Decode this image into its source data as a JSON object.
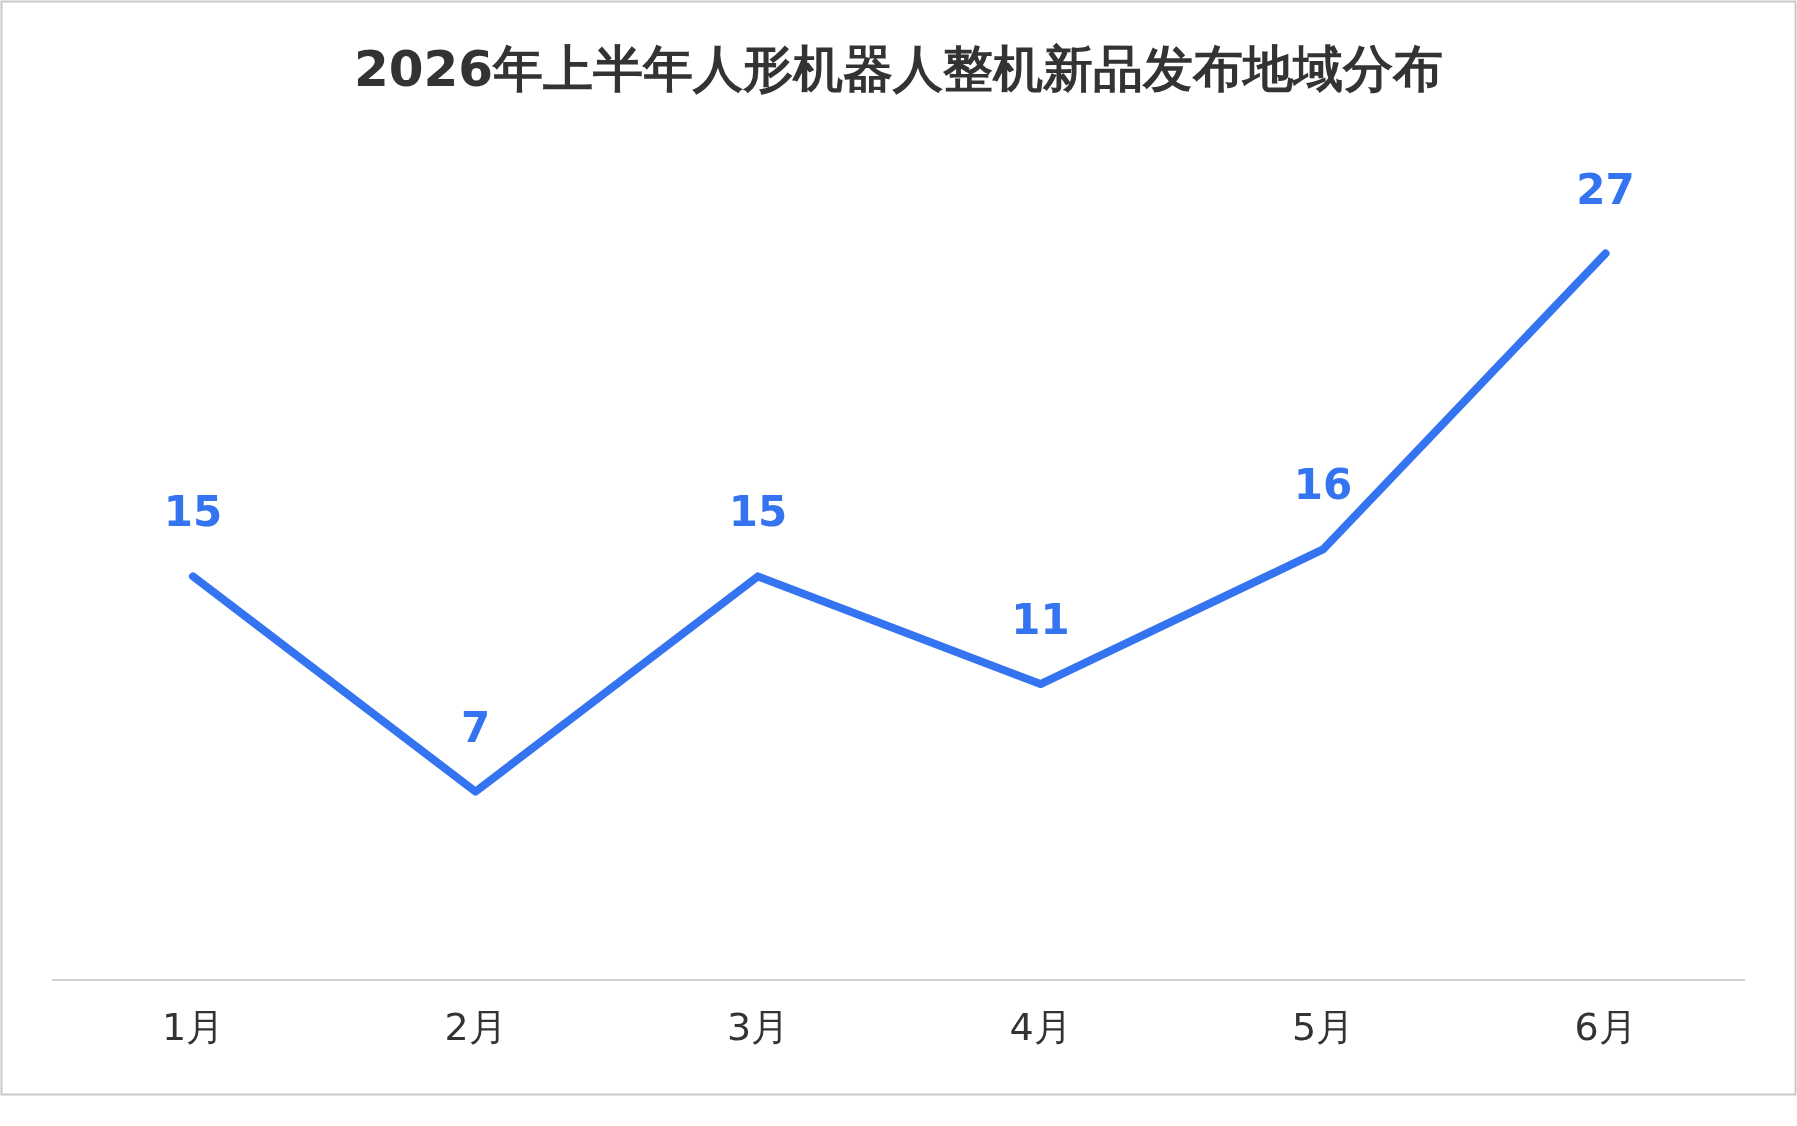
{
  "chart_data": {
    "type": "line",
    "title": "2026年上半年人形机器人整机新品发布地域分布",
    "categories": [
      "1月",
      "2月",
      "3月",
      "4月",
      "5月",
      "6月"
    ],
    "values": [
      15,
      7,
      15,
      11,
      16,
      27
    ],
    "color": "#3574f0",
    "data_labels": true,
    "marker": "none"
  }
}
